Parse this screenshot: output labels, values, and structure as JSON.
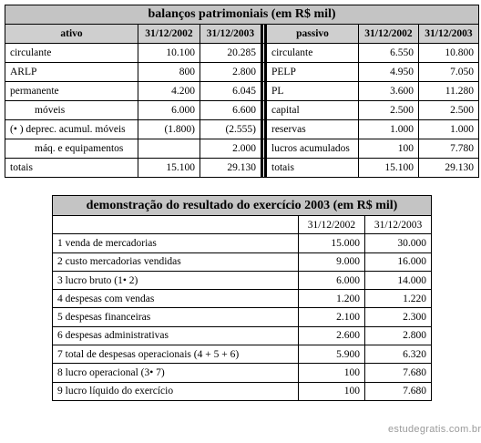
{
  "balance": {
    "title": "balanços patrimoniais (em R$ mil)",
    "headers": [
      "ativo",
      "31/12/2002",
      "31/12/2003",
      "passivo",
      "31/12/2002",
      "31/12/2003"
    ],
    "rows": [
      [
        "circulante",
        "10.100",
        "20.285",
        "circulante",
        "6.550",
        "10.800"
      ],
      [
        "ARLP",
        "800",
        "2.800",
        "PELP",
        "4.950",
        "7.050"
      ],
      [
        "permanente",
        "4.200",
        "6.045",
        "PL",
        "3.600",
        "11.280"
      ],
      [
        "móveis",
        "6.000",
        "6.600",
        "capital",
        "2.500",
        "2.500"
      ],
      [
        "(• ) deprec. acumul. móveis",
        "(1.800)",
        "(2.555)",
        "reservas",
        "1.000",
        "1.000"
      ],
      [
        "máq. e equipamentos",
        "",
        "2.000",
        "lucros acumulados",
        "100",
        "7.780"
      ],
      [
        "totais",
        "15.100",
        "29.130",
        "totais",
        "15.100",
        "29.130"
      ]
    ]
  },
  "income": {
    "title": "demonstração do resultado do exercício 2003 (em R$ mil)",
    "headers": [
      "",
      "31/12/2002",
      "31/12/2003"
    ],
    "rows": [
      [
        "1  venda de mercadorias",
        "15.000",
        "30.000"
      ],
      [
        "2  custo mercadorias vendidas",
        "9.000",
        "16.000"
      ],
      [
        "3  lucro bruto (1• 2)",
        "6.000",
        "14.000"
      ],
      [
        "4  despesas com vendas",
        "1.200",
        "1.220"
      ],
      [
        "5  despesas financeiras",
        "2.100",
        "2.300"
      ],
      [
        "6  despesas administrativas",
        "2.600",
        "2.800"
      ],
      [
        "7  total de despesas operacionais (4 + 5 + 6)",
        "5.900",
        "6.320"
      ],
      [
        "8  lucro operacional (3• 7)",
        "100",
        "7.680"
      ],
      [
        "9  lucro líquido do exercício",
        "100",
        "7.680"
      ]
    ]
  },
  "footer": "estudegratis.com.br"
}
